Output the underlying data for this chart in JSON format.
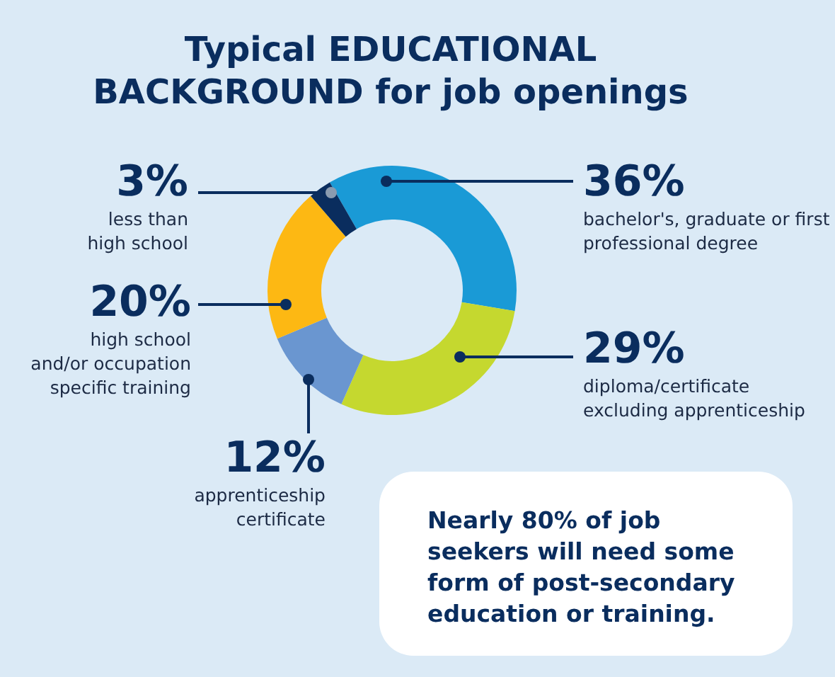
{
  "chart_data": {
    "type": "donut",
    "title": "Typical EDUCATIONAL BACKGROUND for job openings",
    "categories": [
      "bachelor's, graduate or first professional degree",
      "diploma/certificate excluding apprenticeship",
      "apprenticeship certificate",
      "high school and/or occupation specific training",
      "less than high school"
    ],
    "values": [
      36,
      29,
      12,
      20,
      3
    ],
    "value_labels": [
      "36%",
      "29%",
      "12%",
      "20%",
      "3%"
    ],
    "colors": [
      "#1a9ad6",
      "#c5d82f",
      "#6a96d0",
      "#fdb813",
      "#0a2d5e"
    ],
    "annotations": [
      "Nearly 80% of job seekers will need some form of post-secondary education or training."
    ],
    "legend": false
  }
}
